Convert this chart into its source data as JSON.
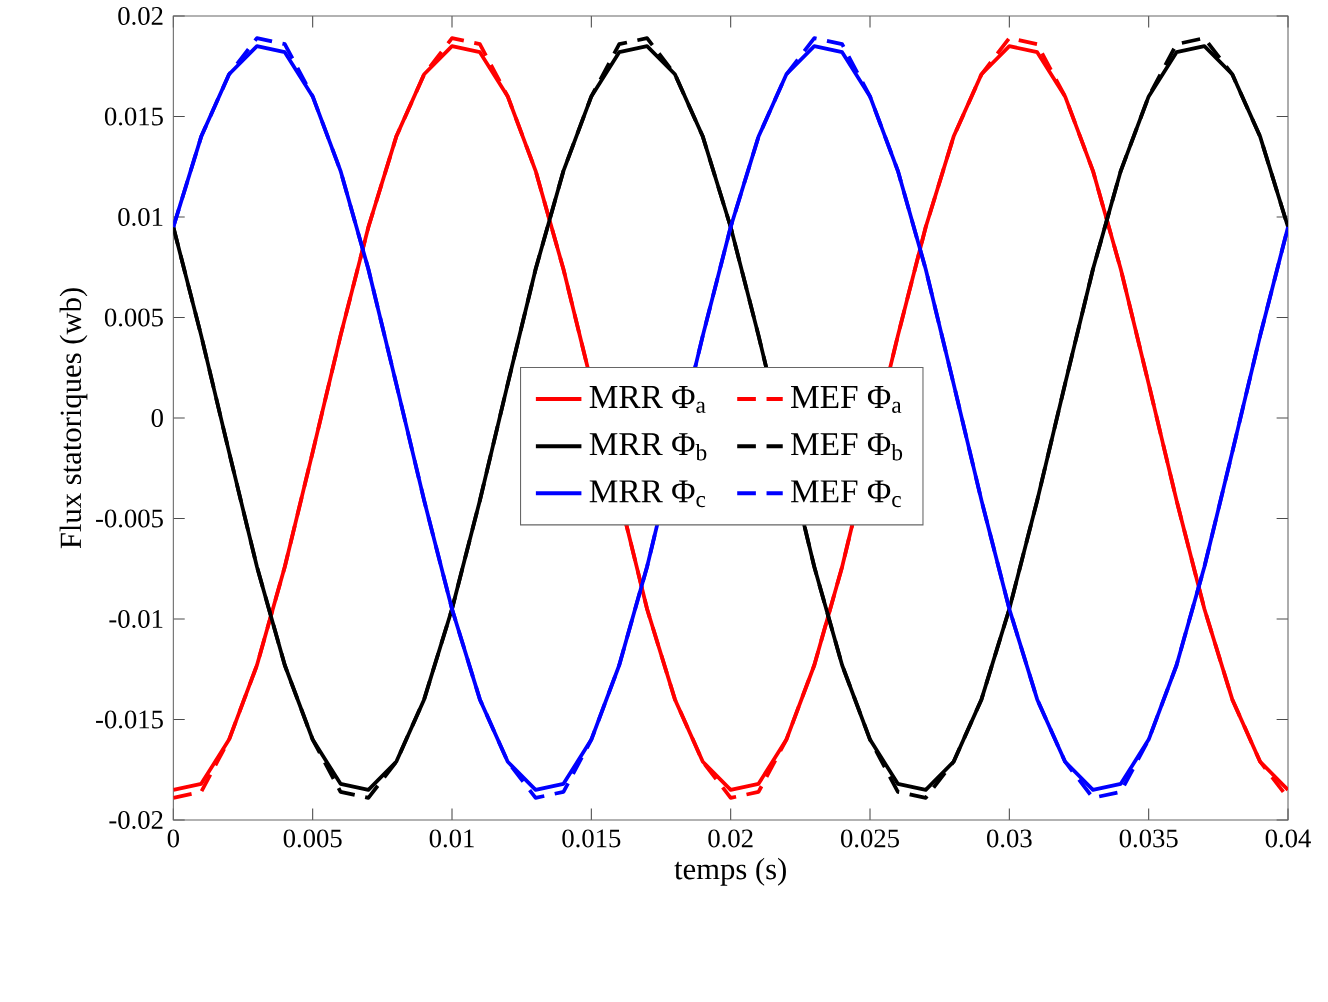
{
  "chart_data": {
    "type": "line",
    "xlabel": "temps (s)",
    "ylabel": "Flux statoriques (wb)",
    "x": [
      0,
      0.001,
      0.002,
      0.003,
      0.004,
      0.005,
      0.006,
      0.007,
      0.008,
      0.009,
      0.01,
      0.011,
      0.012,
      0.013,
      0.014,
      0.015,
      0.016,
      0.017,
      0.018,
      0.019,
      0.02,
      0.021,
      0.022,
      0.023,
      0.024,
      0.025,
      0.026,
      0.027,
      0.028,
      0.029,
      0.03,
      0.031,
      0.032,
      0.033,
      0.034,
      0.035,
      0.036,
      0.037,
      0.038,
      0.039,
      0.04
    ],
    "xlim": [
      0,
      0.04
    ],
    "ylim": [
      -0.02,
      0.02
    ],
    "xticks": [
      0,
      0.005,
      0.01,
      0.015,
      0.02,
      0.025,
      0.03,
      0.035,
      0.04
    ],
    "yticks": [
      -0.02,
      -0.015,
      -0.01,
      -0.005,
      0,
      0.005,
      0.01,
      0.015,
      0.02
    ],
    "legend": "center",
    "grid": false,
    "series": [
      {
        "name": "MRR Φ$_{a}$",
        "color": "#ff0000",
        "line_style": "solid",
        "values": [
          -0.0185,
          -0.0182,
          -0.016,
          -0.0123,
          -0.0074,
          -0.0017,
          0.0041,
          0.0095,
          0.014,
          0.0171,
          0.0185,
          0.0182,
          0.016,
          0.0123,
          0.0074,
          null,
          null,
          -0.0095,
          -0.014,
          -0.0171,
          -0.0185,
          -0.0182,
          -0.016,
          -0.0123,
          -0.0074,
          null,
          0.0041,
          0.0095,
          0.014,
          0.0171,
          0.0185,
          0.0182,
          0.016,
          0.0123,
          0.0074,
          0.0017,
          -0.0041,
          -0.0095,
          -0.014,
          -0.0171,
          -0.0185
        ]
      },
      {
        "name": "MEF Φ$_{a}$",
        "color": "#ff0000",
        "line_style": "dashed",
        "values": [
          -0.0189,
          -0.0186,
          -0.016,
          -0.0123,
          -0.0074,
          -0.0017,
          0.0041,
          0.0095,
          0.014,
          0.0171,
          0.0189,
          0.0186,
          0.016,
          0.0123,
          0.0074,
          null,
          null,
          -0.0095,
          -0.014,
          -0.0171,
          -0.0189,
          -0.0186,
          -0.016,
          -0.0123,
          -0.0074,
          null,
          0.0041,
          0.0095,
          0.014,
          0.0171,
          0.0189,
          0.0186,
          0.016,
          0.0123,
          0.0074,
          0.0017,
          -0.0041,
          -0.0095,
          -0.014,
          -0.0171,
          -0.0189
        ]
      },
      {
        "name": "MRR Φ$_{b}$",
        "color": "#000000",
        "line_style": "solid",
        "values": [
          0.0095,
          0.0041,
          -0.0017,
          -0.0074,
          -0.0123,
          -0.016,
          -0.0182,
          -0.0185,
          -0.0171,
          -0.014,
          -0.0095,
          -0.0041,
          0.0017,
          0.0074,
          0.0123,
          0.016,
          0.0182,
          0.0185,
          0.0171,
          0.014,
          0.0095,
          0.0041,
          null,
          -0.0074,
          -0.0123,
          -0.016,
          -0.0182,
          -0.0185,
          -0.0171,
          -0.014,
          -0.0095,
          -0.0041,
          0.0017,
          0.0074,
          0.0123,
          0.016,
          0.0182,
          0.0185,
          0.0171,
          0.014,
          0.0095
        ]
      },
      {
        "name": "MEF Φ$_{b}$",
        "color": "#000000",
        "line_style": "dashed",
        "values": [
          0.0095,
          0.0041,
          -0.0017,
          -0.0074,
          -0.0123,
          -0.016,
          -0.0186,
          -0.0189,
          -0.0171,
          -0.014,
          -0.0095,
          -0.0041,
          0.0017,
          0.0074,
          0.0123,
          0.016,
          0.0186,
          0.0189,
          0.0171,
          0.014,
          0.0095,
          0.0041,
          null,
          -0.0074,
          -0.0123,
          -0.016,
          -0.0186,
          -0.0189,
          -0.0171,
          -0.014,
          -0.0095,
          -0.0041,
          0.0017,
          0.0074,
          0.0123,
          0.016,
          0.0186,
          0.0189,
          0.0171,
          0.014,
          0.0095
        ]
      },
      {
        "name": "MRR Φ$_{c}$",
        "color": "#0000ff",
        "line_style": "solid",
        "values": [
          0.0095,
          0.014,
          0.0171,
          0.0185,
          0.0182,
          0.016,
          0.0123,
          0.0074,
          0.0017,
          -0.0041,
          -0.0095,
          -0.014,
          -0.0171,
          -0.0185,
          -0.0182,
          -0.016,
          -0.0123,
          -0.0074,
          null,
          0.0041,
          0.0095,
          0.014,
          0.0171,
          0.0185,
          0.0182,
          0.016,
          0.0123,
          0.0074,
          0.0017,
          -0.0041,
          -0.0095,
          -0.014,
          -0.0171,
          -0.0185,
          -0.0182,
          -0.016,
          -0.0123,
          -0.0074,
          -0.0017,
          0.0041,
          0.0095
        ]
      },
      {
        "name": "MEF Φ$_{c}$",
        "color": "#0000ff",
        "line_style": "dashed",
        "values": [
          0.0095,
          0.014,
          0.0171,
          0.0189,
          0.0186,
          0.016,
          0.0123,
          0.0074,
          0.0017,
          -0.0041,
          -0.0095,
          -0.014,
          -0.0171,
          -0.0189,
          -0.0186,
          -0.016,
          -0.0123,
          -0.0074,
          null,
          0.0041,
          0.0095,
          0.014,
          0.0171,
          0.0189,
          0.0186,
          0.016,
          0.0123,
          0.0074,
          0.0017,
          -0.0041,
          -0.0095,
          -0.014,
          -0.0171,
          -0.0189,
          -0.0186,
          -0.016,
          -0.0123,
          -0.0074,
          -0.0017,
          0.0041,
          0.0095
        ]
      }
    ]
  }
}
